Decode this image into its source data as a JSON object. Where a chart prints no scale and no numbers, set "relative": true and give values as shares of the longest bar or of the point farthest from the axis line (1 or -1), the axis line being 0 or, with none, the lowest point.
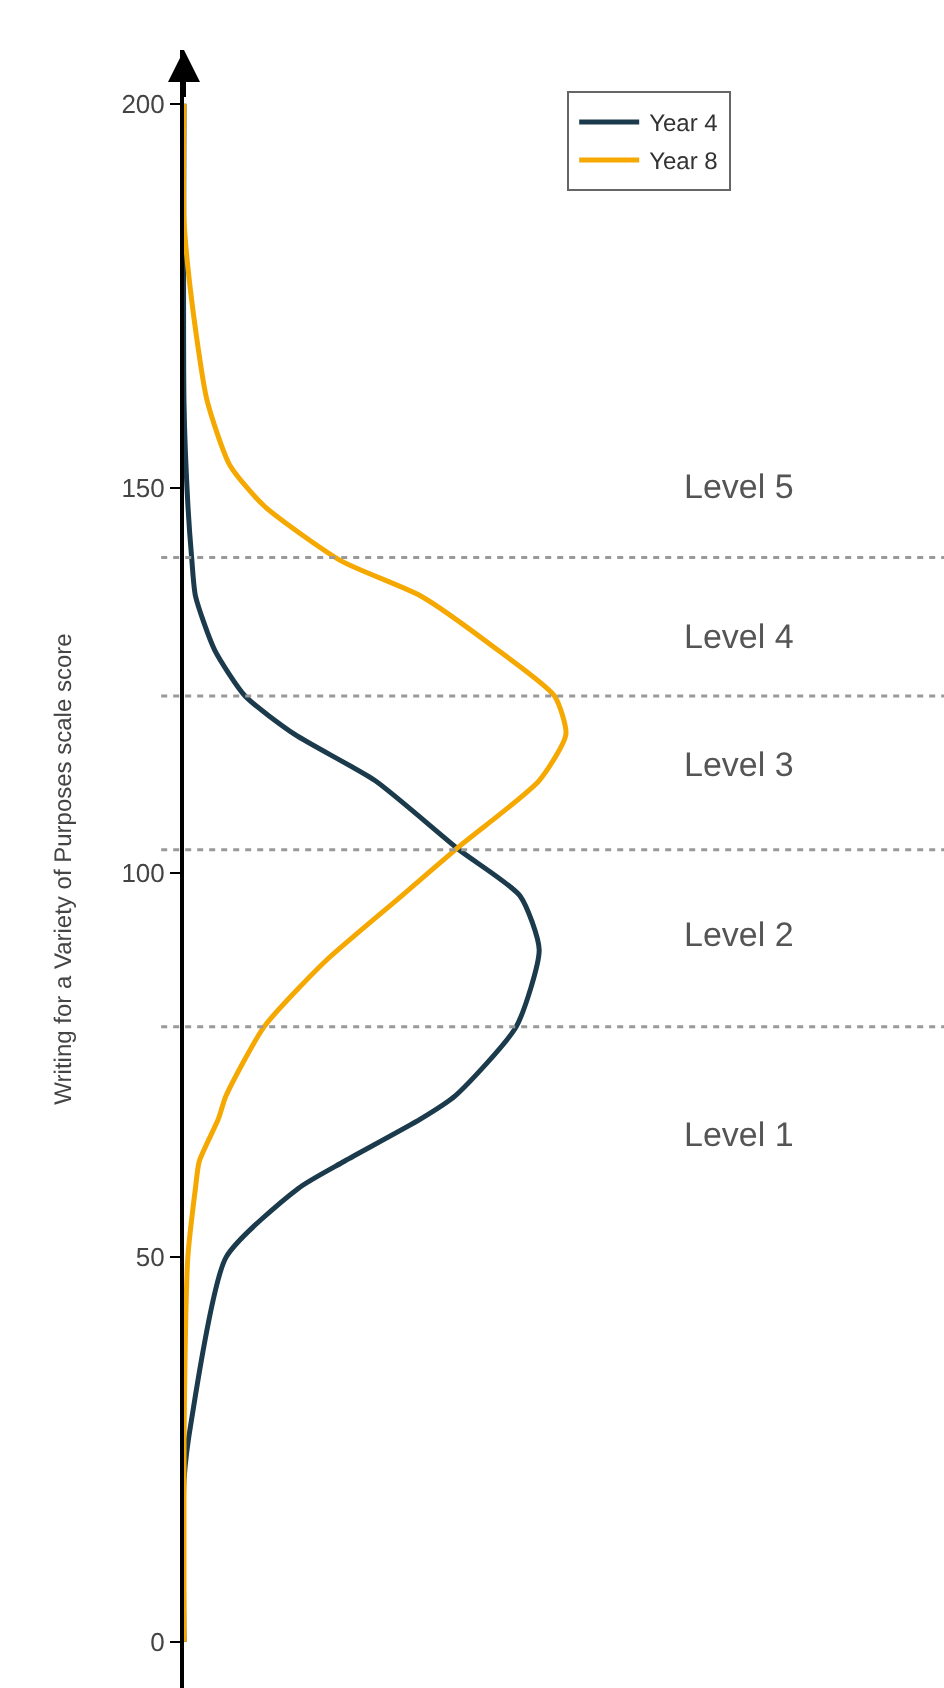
{
  "chart_data": {
    "type": "line",
    "orientation": "horizontal",
    "relative": true,
    "ylabel": "Writing for a Variety of Purposes scale score",
    "ylim": [
      -6,
      207
    ],
    "yticks": [
      0,
      50,
      100,
      150,
      200
    ],
    "legend": "top right",
    "marker": "none",
    "line_style": "solid",
    "series": [
      {
        "name": "Year 4",
        "color": "#1b3a4b",
        "x": [
          0,
          21,
          29,
          50,
          59,
          62.5,
          68,
          71,
          80,
          90,
          97,
          103,
          112,
          118,
          123,
          129,
          136,
          141,
          148,
          161,
          200
        ],
        "values": [
          0,
          0,
          0.02,
          0.11,
          0.3,
          0.42,
          0.62,
          0.71,
          0.87,
          0.93,
          0.88,
          0.72,
          0.5,
          0.29,
          0.16,
          0.08,
          0.03,
          0.02,
          0.01,
          0,
          0
        ]
      },
      {
        "name": "Year 8",
        "color": "#f5a800",
        "x": [
          0,
          26,
          50,
          59,
          62.5,
          68,
          71,
          80,
          88.5,
          97,
          103.4,
          112,
          118,
          123,
          129.4,
          136,
          140.6,
          147.7,
          153,
          161.5,
          174.5,
          185,
          200
        ],
        "values": [
          0,
          0,
          0.01,
          0.03,
          0.04,
          0.09,
          0.11,
          0.21,
          0.37,
          0.57,
          0.72,
          0.93,
          1,
          0.97,
          0.81,
          0.62,
          0.41,
          0.21,
          0.12,
          0.06,
          0.02,
          0,
          0
        ]
      }
    ],
    "ref_lines": [
      {
        "axis": "y",
        "value": 80,
        "color": "#999999",
        "line_style": "dotted"
      },
      {
        "axis": "y",
        "value": 103,
        "color": "#999999",
        "line_style": "dotted"
      },
      {
        "axis": "y",
        "value": 123,
        "color": "#999999",
        "line_style": "dotted"
      },
      {
        "axis": "y",
        "value": 141,
        "color": "#999999",
        "line_style": "dotted"
      }
    ],
    "annotations": [
      "Level 1",
      "Level 2",
      "Level 3",
      "Level 4",
      "Level 5"
    ]
  }
}
